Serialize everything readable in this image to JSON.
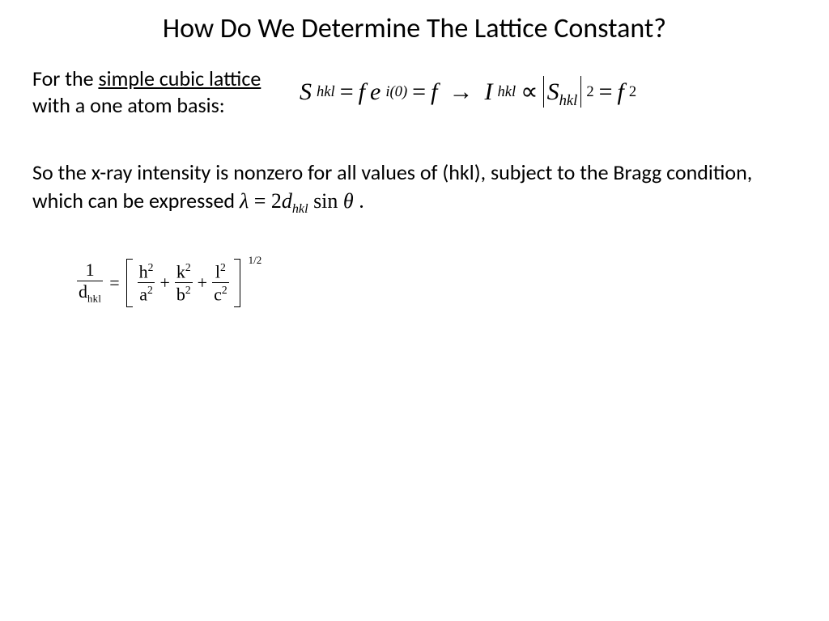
{
  "title": "How Do We Determine The Lattice Constant?",
  "intro": {
    "prefix": "For the ",
    "underlined": "simple cubic lattice",
    "suffix": " with a one atom basis:"
  },
  "formula1": {
    "S": "S",
    "hkl": "hkl",
    "eq1": " = ",
    "f1": "f",
    "e": " e",
    "exp_i0": "i(0)",
    "eq2": " = ",
    "f2": "f",
    "arrow": "→",
    "I": "I",
    "propto": " ∝ ",
    "sq": "2",
    "eq3": " = ",
    "f3": "f",
    "sq2": " 2"
  },
  "para2": {
    "text1": "So the x-ray intensity is nonzero for all values of (hkl), subject to the Bragg condition, which can be expressed  ",
    "lambda": "λ",
    "eq": " = 2",
    "d": "d",
    "hkl": "hkl",
    "sin": " sin ",
    "theta": "θ",
    "period": "."
  },
  "formula3": {
    "one": "1",
    "d": "d",
    "hkl": "hkl",
    "eq": "=",
    "h": "h",
    "k": "k",
    "l": "l",
    "a": "a",
    "b": "b",
    "c": "c",
    "two": "2",
    "plus": "+",
    "half": "1/2"
  },
  "style": {
    "background": "#ffffff",
    "text_color": "#000000",
    "title_fontsize": 34,
    "body_fontsize": 26,
    "formula_fontsize": 30,
    "formula3_fontsize": 22,
    "font_body": "Calibri",
    "font_math": "Times New Roman"
  }
}
